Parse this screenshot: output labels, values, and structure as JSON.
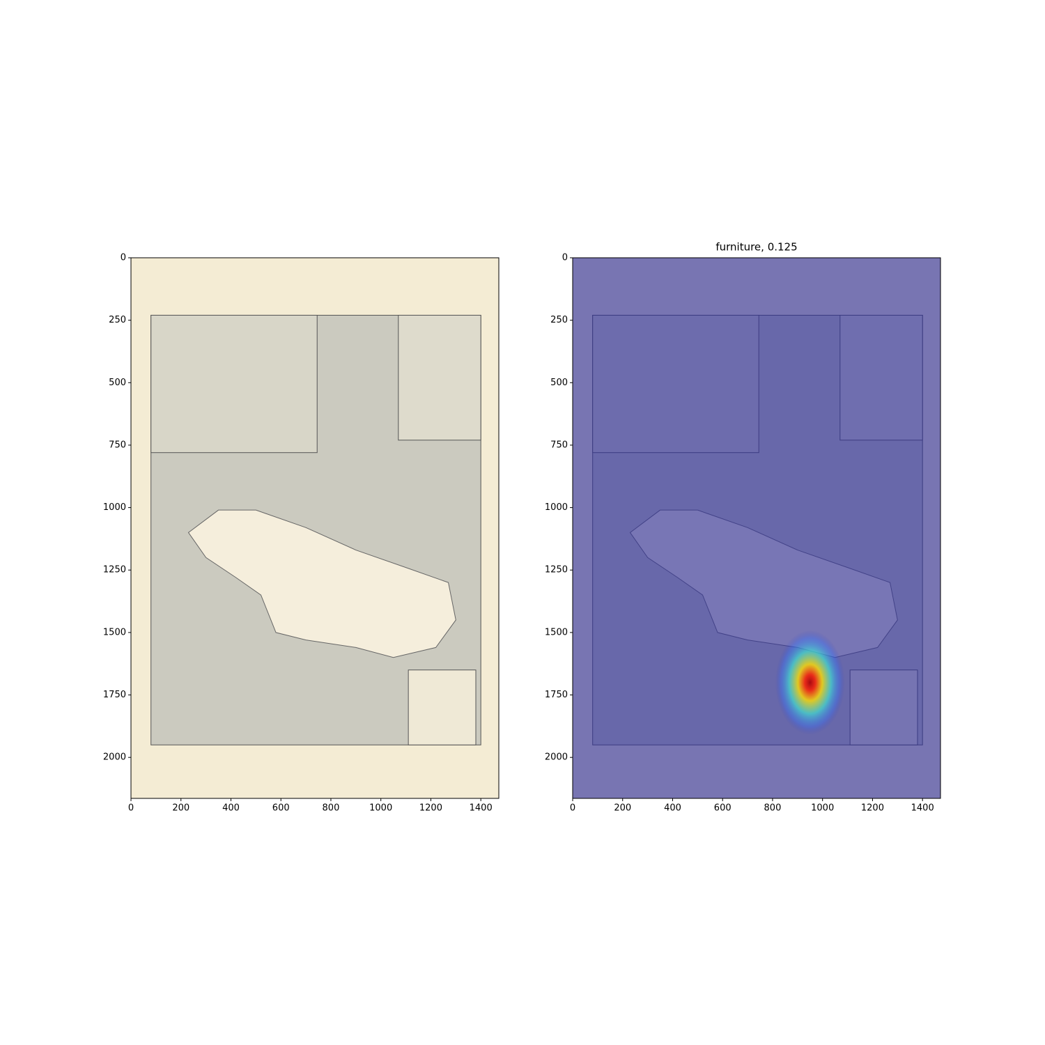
{
  "chart_data": [
    {
      "type": "image",
      "xlim": [
        0,
        1472
      ],
      "ylim": [
        2164,
        0
      ],
      "xticks": [
        0,
        200,
        400,
        600,
        800,
        1000,
        1200,
        1400
      ],
      "yticks": [
        0,
        250,
        500,
        750,
        1000,
        1250,
        1500,
        1750,
        2000
      ]
    },
    {
      "type": "image",
      "title": "furniture, 0.125",
      "xlim": [
        0,
        1472
      ],
      "ylim": [
        2164,
        0
      ],
      "xticks": [
        0,
        200,
        400,
        600,
        800,
        1000,
        1200,
        1400
      ],
      "yticks": [
        0,
        250,
        500,
        750,
        1000,
        1250,
        1500,
        1750,
        2000
      ],
      "overlay": "heatmap",
      "peak": [
        950,
        1700
      ]
    }
  ]
}
